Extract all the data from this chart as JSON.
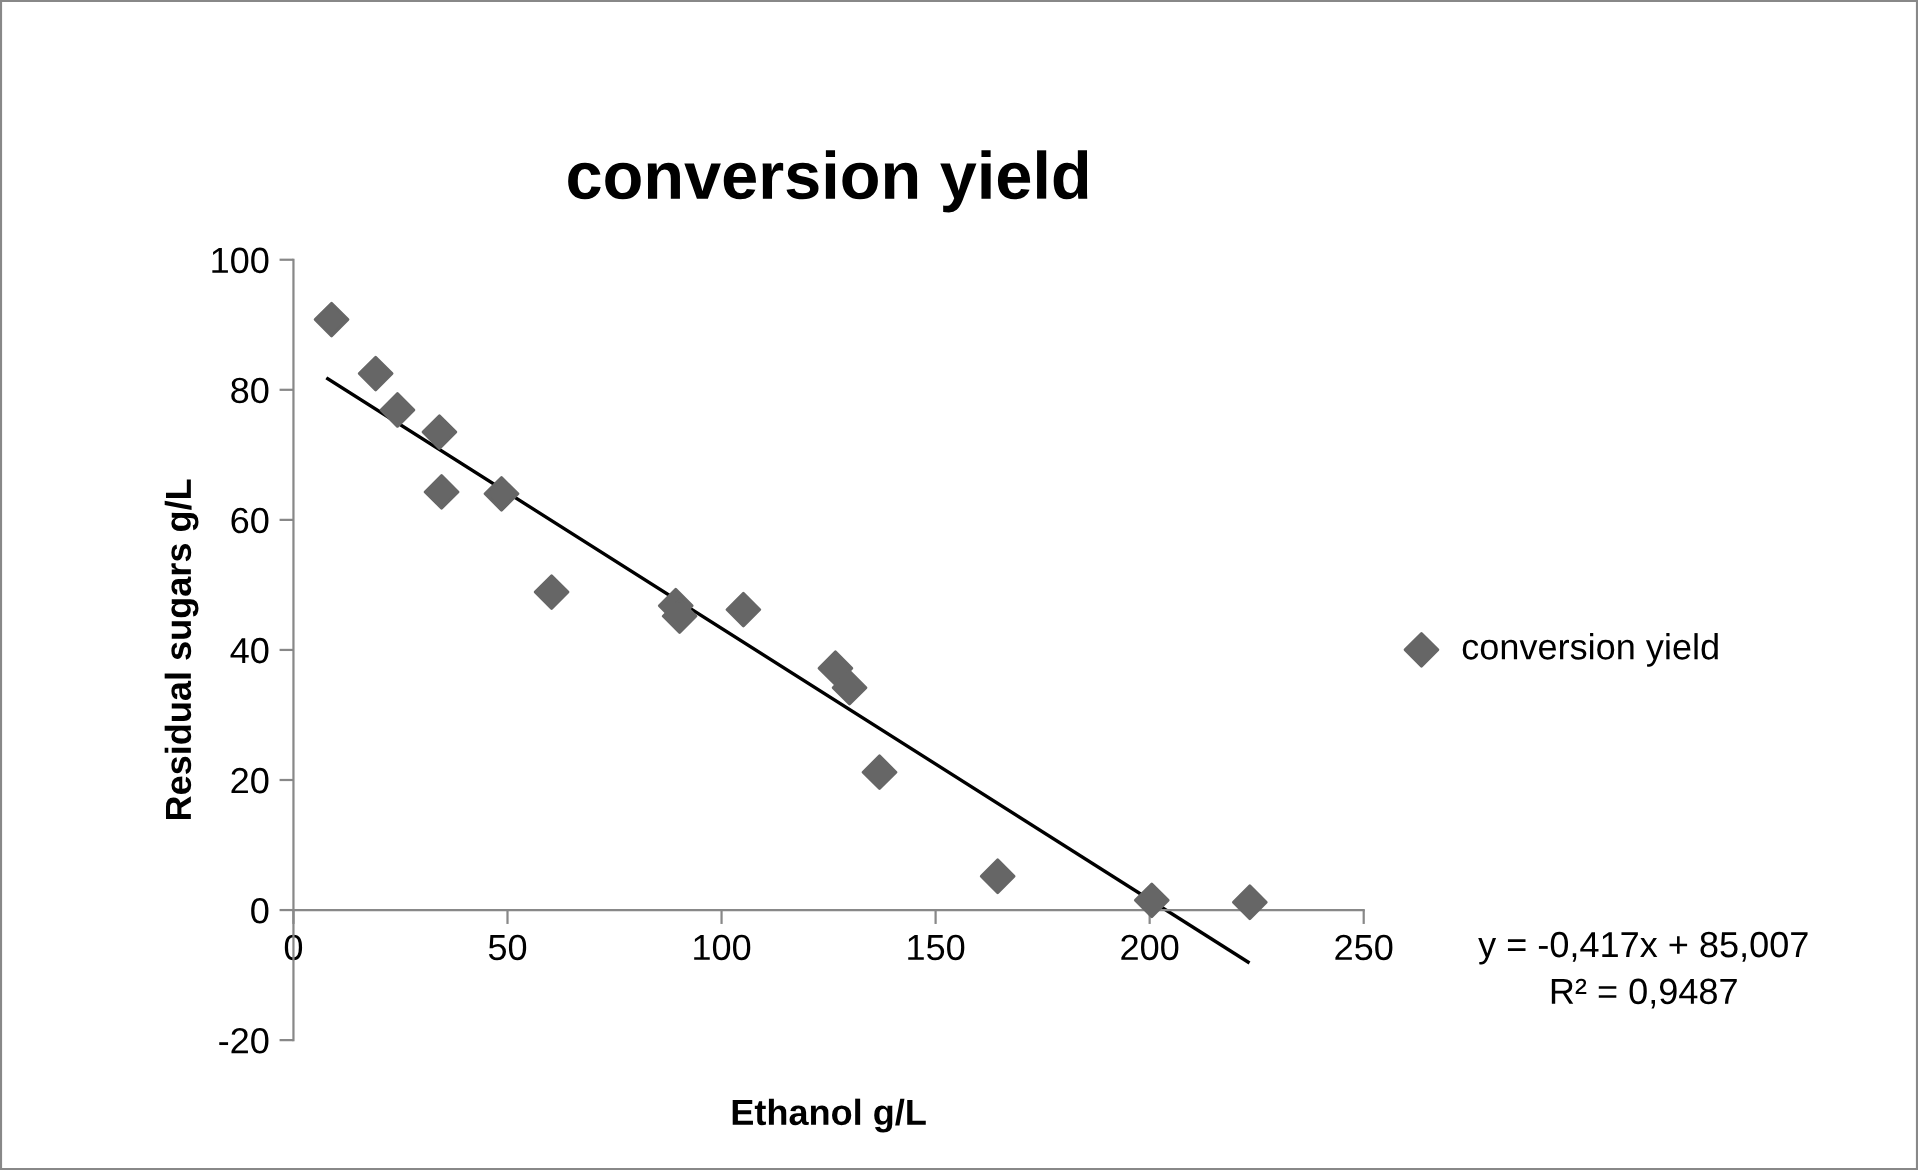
{
  "chart_data": {
    "type": "scatter",
    "title": "conversion yield",
    "xlabel": "Ethanol g/L",
    "ylabel": "Residual sugars g/L",
    "annotations": [
      "y = -0,417x + 85,007",
      "R² = 0,9487"
    ],
    "series": [
      {
        "name": "conversion yield",
        "color": "#666666",
        "marker": "diamond",
        "x": [
          8.9,
          19.2,
          24.3,
          34.1,
          34.6,
          48.6,
          60.3,
          89.3,
          90.2,
          105.1,
          126.6,
          129.9,
          136.9,
          164.5,
          200.5,
          223.4
        ],
        "values": [
          90.8,
          82.5,
          76.9,
          73.5,
          64.3,
          64.0,
          48.9,
          46.8,
          45.2,
          46.2,
          37.2,
          34.2,
          21.2,
          5.2,
          1.5,
          1.2
        ]
      },
      {
        "type": "line",
        "color": "#000000",
        "marker": "none",
        "x": [
          8,
          223
        ],
        "values": [
          81.7,
          -8.0
        ]
      }
    ],
    "xlim": [
      0,
      250
    ],
    "xticks": [
      0,
      50,
      100,
      150,
      200,
      250
    ],
    "ylim": [
      -20,
      100
    ],
    "yticks": [
      {
        "value": -20,
        "label": "-20"
      },
      0,
      20,
      40,
      60,
      80,
      100
    ],
    "grid": false,
    "legend": "right"
  }
}
